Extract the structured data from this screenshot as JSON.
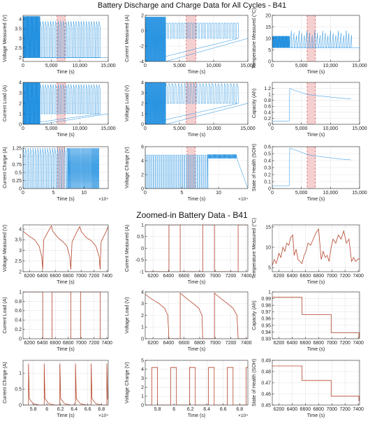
{
  "figure": {
    "title_top": "Battery Discharge and Charge Data for All Cycles - B41",
    "title_zoom": "Zoomed-in Battery Data - B41",
    "colors": {
      "overview": "#1f8fe0",
      "zoom": "#b6452c",
      "highlight": "#f3c4c4",
      "marker": "#d45a5a",
      "axis": "#262626",
      "grid": "#e6e6e6"
    }
  },
  "chart_data": [
    {
      "id": "vm_all",
      "type": "line",
      "ylabel": "Voltage Measured (V)",
      "xlabel": "Time (s)",
      "xlim": [
        0,
        15000
      ],
      "ylim": [
        1.8,
        4.2
      ],
      "xticks": [
        0,
        5000,
        10000,
        15000
      ],
      "xtick_labels": [
        "0",
        "5,000",
        "10,000",
        "15,000"
      ],
      "yticks": [
        2,
        2.5,
        3,
        3.5,
        4
      ],
      "ytick_labels": [
        "2",
        "2.5",
        "3",
        "3.5",
        "4"
      ],
      "highlight": [
        6000,
        7400
      ],
      "pattern": "spikes",
      "dense_end": 3000,
      "cycle_period": 450,
      "spike_end": 13500,
      "base": 2.0,
      "level": 3.9,
      "dense_low": 2.0,
      "dense_high": 4.15
    },
    {
      "id": "cm_all",
      "type": "line",
      "ylabel": "Current Measured (A)",
      "xlabel": "Time (s)",
      "xlim": [
        0,
        15000
      ],
      "ylim": [
        -4,
        2
      ],
      "xticks": [
        0,
        5000,
        10000,
        15000
      ],
      "xtick_labels": [
        "0",
        "5,000",
        "10,000",
        "15,000"
      ],
      "yticks": [
        -4,
        -2,
        0,
        2
      ],
      "ytick_labels": [
        "-4",
        "-2",
        "0",
        "2"
      ],
      "highlight": [
        6000,
        7400
      ],
      "pattern": "square",
      "dense_end": 3000,
      "cycle_period": 450,
      "spike_end": 13500,
      "base": -1.0,
      "level": 1.0,
      "dense_low": -4.0,
      "dense_high": 1.8
    },
    {
      "id": "tm_all",
      "type": "line",
      "ylabel": "Temperature Measured (°C)",
      "xlabel": "Time (s)",
      "xlim": [
        0,
        15000
      ],
      "ylim": [
        0,
        20
      ],
      "xticks": [
        0,
        5000,
        10000,
        15000
      ],
      "xtick_labels": [
        "0",
        "5,000",
        "10,000",
        "15,000"
      ],
      "yticks": [
        0,
        5,
        10,
        15,
        20
      ],
      "ytick_labels": [
        "0",
        "5",
        "10",
        "15",
        "20"
      ],
      "highlight": [
        6000,
        7400
      ],
      "pattern": "temp",
      "dense_end": 3000,
      "cycle_period": 450,
      "spike_end": 13500,
      "base": 6.0,
      "level": 14.0,
      "dense_low": 6.0,
      "dense_high": 11.0
    },
    {
      "id": "cl_all",
      "type": "line",
      "ylabel": "Current Load (A)",
      "xlabel": "Time (s)",
      "xlim": [
        0,
        15000
      ],
      "ylim": [
        0,
        4
      ],
      "xticks": [
        0,
        5000,
        10000,
        15000
      ],
      "xtick_labels": [
        "0",
        "5,000",
        "10,000",
        "15,000"
      ],
      "yticks": [
        0,
        1,
        2,
        3,
        4
      ],
      "ytick_labels": [
        "0",
        "1",
        "2",
        "3",
        "4"
      ],
      "highlight": [
        6000,
        7400
      ],
      "pattern": "spikes",
      "dense_end": 3000,
      "cycle_period": 450,
      "spike_end": 13500,
      "base": 1.0,
      "level": 3.8,
      "dense_low": 0.0,
      "dense_high": 4.0
    },
    {
      "id": "vl_all",
      "type": "line",
      "ylabel": "Voltage Load (V)",
      "xlabel": "Time (s)",
      "xlim": [
        0,
        15000
      ],
      "ylim": [
        0,
        4
      ],
      "xticks": [
        0,
        5000,
        10000,
        15000
      ],
      "xtick_labels": [
        "0",
        "5,000",
        "10,000",
        "15,000"
      ],
      "yticks": [
        0,
        1,
        2,
        3,
        4
      ],
      "ytick_labels": [
        "0",
        "1",
        "2",
        "3",
        "4"
      ],
      "highlight": [
        6000,
        7400
      ],
      "pattern": "spikes",
      "dense_end": 3000,
      "cycle_period": 450,
      "spike_end": 13500,
      "base": 2.0,
      "level": 3.9,
      "dense_low": 0.0,
      "dense_high": 4.0
    },
    {
      "id": "cap_all",
      "type": "line",
      "ylabel": "Capacity (Ah)",
      "xlabel": "Time (s)",
      "xlim": [
        0,
        15000
      ],
      "ylim": [
        0,
        1.4
      ],
      "xticks": [
        0,
        5000,
        10000,
        15000
      ],
      "xtick_labels": [
        "0",
        "5,000",
        "10,000",
        "15,000"
      ],
      "yticks": [
        0,
        0.2,
        0.4,
        0.6,
        0.8,
        1,
        1.2
      ],
      "ytick_labels": [
        "0",
        "0.2",
        "0.4",
        "0.6",
        "0.8",
        "1",
        "1.2"
      ],
      "highlight": [
        6000,
        7400
      ],
      "pattern": "points",
      "x": [
        0,
        2900,
        3000,
        4000,
        5000,
        6000,
        7000,
        8000,
        9000,
        10000,
        11000,
        12000,
        13500
      ],
      "y": [
        0.1,
        0.1,
        1.2,
        1.12,
        1.06,
        1.0,
        0.97,
        0.95,
        0.93,
        0.91,
        0.89,
        0.87,
        0.85
      ]
    },
    {
      "id": "cc_all",
      "type": "line",
      "ylabel": "Current Charge (A)",
      "xlabel": "Time (s)",
      "x_multiplier": "×10⁴",
      "xlim": [
        0,
        140000
      ],
      "ylim": [
        0,
        1.3
      ],
      "xticks": [
        0,
        50000,
        100000
      ],
      "xtick_labels": [
        "0",
        "5",
        "10"
      ],
      "yticks": [
        0,
        0.25,
        0.5,
        0.75,
        1,
        1.25
      ],
      "ytick_labels": [
        "0",
        "0.25",
        "0.5",
        "0.75",
        "1",
        "1.25"
      ],
      "highlight": [
        57000,
        68000
      ],
      "pattern": "spikes",
      "dense_start": 73000,
      "dense_end": 125000,
      "cycle_period": 4000,
      "spike_end": 73000,
      "base": 0.0,
      "level": 1.25,
      "dense_low": 0.0,
      "dense_high": 1.25
    },
    {
      "id": "vc_all",
      "type": "line",
      "ylabel": "Voltage Charge (V)",
      "xlabel": "Time (s)",
      "x_multiplier": "×10⁴",
      "xlim": [
        0,
        140000
      ],
      "ylim": [
        0,
        6
      ],
      "xticks": [
        0,
        50000,
        100000
      ],
      "xtick_labels": [
        "0",
        "5",
        "10"
      ],
      "yticks": [
        0,
        2,
        4,
        6
      ],
      "ytick_labels": [
        "0",
        "2",
        "4",
        "6"
      ],
      "highlight": [
        57000,
        68000
      ],
      "pattern": "square",
      "dense_start": 85000,
      "dense_end": 125000,
      "cycle_period": 3000,
      "spike_end": 85000,
      "base": 0.0,
      "level": 4.8,
      "dense_low": 4.3,
      "dense_high": 4.9
    },
    {
      "id": "soh_all",
      "type": "line",
      "ylabel": "State of Health (SOH)",
      "xlabel": "Time (s)",
      "xlim": [
        0,
        15000
      ],
      "ylim": [
        0,
        0.6
      ],
      "xticks": [
        0,
        5000,
        10000,
        15000
      ],
      "xtick_labels": [
        "0",
        "5,000",
        "10,000",
        "15,000"
      ],
      "yticks": [
        0,
        0.1,
        0.2,
        0.3,
        0.4,
        0.5,
        0.6
      ],
      "ytick_labels": [
        "0",
        "0.1",
        "0.2",
        "0.3",
        "0.4",
        "0.5",
        "0.6"
      ],
      "highlight": [
        6000,
        7400
      ],
      "pattern": "points",
      "x": [
        0,
        2900,
        3000,
        4000,
        5000,
        6000,
        7000,
        8000,
        9000,
        10000,
        11000,
        12000,
        13500
      ],
      "y": [
        0.04,
        0.04,
        0.58,
        0.55,
        0.52,
        0.49,
        0.47,
        0.46,
        0.45,
        0.44,
        0.43,
        0.42,
        0.41
      ]
    },
    {
      "id": "vm_zoom",
      "type": "line",
      "ylabel": "Voltage Measured (V)",
      "xlabel": "Time (s)",
      "xlim": [
        6100,
        7420
      ],
      "ylim": [
        2,
        4.2
      ],
      "xticks": [
        6200,
        6400,
        6600,
        6800,
        7000,
        7200,
        7400
      ],
      "xtick_labels": [
        "6200",
        "6400",
        "6600",
        "6800",
        "7000",
        "7200",
        "7400"
      ],
      "yticks": [
        2,
        2.5,
        3,
        3.5,
        4
      ],
      "ytick_labels": [
        "2",
        "2.5",
        "3",
        "3.5",
        "4"
      ],
      "pattern": "points",
      "x": [
        6100,
        6180,
        6280,
        6350,
        6390,
        6405,
        6420,
        6500,
        6540,
        6560,
        6640,
        6720,
        6780,
        6825,
        6840,
        6860,
        6940,
        6980,
        7000,
        7080,
        7160,
        7230,
        7280,
        7295,
        7310,
        7390,
        7420
      ],
      "y": [
        3.9,
        3.7,
        3.5,
        3.2,
        2.7,
        2.1,
        3.5,
        3.95,
        4.15,
        3.9,
        3.6,
        3.4,
        3.2,
        2.7,
        2.1,
        3.4,
        3.9,
        4.12,
        3.9,
        3.6,
        3.45,
        3.2,
        2.7,
        2.1,
        3.4,
        3.9,
        4.12
      ]
    },
    {
      "id": "cm_zoom",
      "type": "line",
      "ylabel": "Current Measured (A)",
      "xlabel": "Time (s)",
      "xlim": [
        6100,
        7420
      ],
      "ylim": [
        -1,
        1
      ],
      "xticks": [
        6200,
        6400,
        6600,
        6800,
        7000,
        7200,
        7400
      ],
      "xtick_labels": [
        "6200",
        "6400",
        "6600",
        "6800",
        "7000",
        "7200",
        "7400"
      ],
      "yticks": [
        -1,
        -0.5,
        0,
        0.5,
        1
      ],
      "ytick_labels": [
        "-1",
        "-0.5",
        "0",
        "0.5",
        "1"
      ],
      "pattern": "points",
      "x": [
        6100,
        6405,
        6405,
        6550,
        6550,
        6840,
        6840,
        6990,
        6990,
        7295,
        7295,
        7420
      ],
      "y": [
        -1,
        -1,
        1,
        1,
        -1,
        -1,
        1,
        1,
        -1,
        -1,
        1,
        1
      ]
    },
    {
      "id": "tm_zoom",
      "type": "line",
      "ylabel": "Temperature Measured (°C)",
      "xlabel": "Time (s)",
      "xlim": [
        6100,
        7420
      ],
      "ylim": [
        4,
        15.5
      ],
      "xticks": [
        6200,
        6400,
        6600,
        6800,
        7000,
        7200,
        7400
      ],
      "xtick_labels": [
        "6200",
        "6400",
        "6600",
        "6800",
        "7000",
        "7200",
        "7400"
      ],
      "yticks": [
        5,
        10,
        15
      ],
      "ytick_labels": [
        "5",
        "10",
        "15"
      ],
      "pattern": "points",
      "x": [
        6100,
        6130,
        6160,
        6200,
        6230,
        6260,
        6290,
        6320,
        6350,
        6380,
        6410,
        6430,
        6460,
        6490,
        6520,
        6550,
        6580,
        6610,
        6640,
        6680,
        6720,
        6760,
        6800,
        6840,
        6870,
        6900,
        6930,
        6960,
        6990,
        7020,
        7060,
        7100,
        7140,
        7180,
        7220,
        7260,
        7300,
        7330,
        7360,
        7390,
        7420
      ],
      "y": [
        5.5,
        7,
        6,
        8.5,
        7.5,
        10,
        9,
        11,
        10.5,
        12.5,
        13,
        8,
        9.5,
        7,
        6.5,
        6,
        8,
        9,
        11,
        10.5,
        12,
        13.5,
        14.5,
        7,
        9,
        7.5,
        8,
        6.5,
        10,
        12,
        11,
        13,
        12,
        14,
        11,
        12,
        6.5,
        7.5,
        6.5,
        7,
        7.2
      ]
    },
    {
      "id": "cl_zoom",
      "type": "line",
      "ylabel": "Current Load (A)",
      "xlabel": "Time (s)",
      "xlim": [
        6100,
        7420
      ],
      "ylim": [
        0,
        1
      ],
      "xticks": [
        6200,
        6400,
        6600,
        6800,
        7000,
        7200,
        7400
      ],
      "xtick_labels": [
        "6200",
        "6400",
        "6600",
        "6800",
        "7000",
        "7200",
        "7400"
      ],
      "yticks": [
        0,
        0.2,
        0.4,
        0.6,
        0.8,
        1
      ],
      "ytick_labels": [
        "0",
        "0.2",
        "0.4",
        "0.6",
        "0.8",
        "1"
      ],
      "pattern": "points",
      "x": [
        6100,
        6405,
        6405,
        6550,
        6550,
        6840,
        6840,
        6990,
        6990,
        7295,
        7295,
        7420
      ],
      "y": [
        1,
        1,
        0,
        0,
        1,
        1,
        0,
        0,
        1,
        1,
        0,
        0
      ]
    },
    {
      "id": "vl_zoom",
      "type": "line",
      "ylabel": "Voltage Load (V)",
      "xlabel": "Time (s)",
      "xlim": [
        6100,
        7420
      ],
      "ylim": [
        0,
        4
      ],
      "xticks": [
        6200,
        6400,
        6600,
        6800,
        7000,
        7200,
        7400
      ],
      "xtick_labels": [
        "6200",
        "6400",
        "6600",
        "6800",
        "7000",
        "7200",
        "7400"
      ],
      "yticks": [
        0,
        1,
        2,
        3,
        4
      ],
      "ytick_labels": [
        "0",
        "1",
        "2",
        "3",
        "4"
      ],
      "pattern": "points",
      "x": [
        6100,
        6180,
        6280,
        6350,
        6390,
        6405,
        6405,
        6550,
        6550,
        6640,
        6720,
        6790,
        6830,
        6840,
        6840,
        6990,
        6990,
        7080,
        7160,
        7230,
        7280,
        7295,
        7295,
        7420
      ],
      "y": [
        3.8,
        3.4,
        3.0,
        2.6,
        2.0,
        0,
        0,
        0,
        3.9,
        3.4,
        3.0,
        2.6,
        2.0,
        0,
        0,
        0,
        3.9,
        3.4,
        3.0,
        2.6,
        2.0,
        0,
        0,
        0
      ]
    },
    {
      "id": "cap_zoom",
      "type": "line",
      "ylabel": "Capacity (Ah)",
      "xlabel": "Time (s)",
      "xlim": [
        6100,
        7420
      ],
      "ylim": [
        0.93,
        1
      ],
      "xticks": [
        6200,
        6400,
        6600,
        6800,
        7000,
        7200,
        7400
      ],
      "xtick_labels": [
        "6200",
        "6400",
        "6600",
        "6800",
        "7000",
        "7200",
        "7400"
      ],
      "yticks": [
        0.93,
        0.94,
        0.95,
        0.96,
        0.97,
        0.98,
        0.99,
        1
      ],
      "ytick_labels": [
        "0.93",
        "0.94",
        "0.95",
        "0.96",
        "0.97",
        "0.98",
        "0.99",
        "1"
      ],
      "pattern": "points",
      "x": [
        6100,
        6550,
        6550,
        6990,
        6990,
        7410,
        7410,
        7420
      ],
      "y": [
        0.992,
        0.992,
        0.966,
        0.966,
        0.939,
        0.939,
        0.932,
        0.932
      ]
    },
    {
      "id": "cc_zoom",
      "type": "line",
      "ylabel": "Current Charge (A)",
      "xlabel": "Time (s)",
      "x_multiplier": "×10⁴",
      "xlim": [
        56500,
        69000
      ],
      "ylim": [
        0,
        1.4
      ],
      "xticks": [
        58000,
        60000,
        62000,
        64000,
        66000,
        68000
      ],
      "xtick_labels": [
        "5.8",
        "6",
        "6.2",
        "6.4",
        "6.6",
        "6.8"
      ],
      "yticks": [
        0,
        0.5,
        1
      ],
      "ytick_labels": [
        "0",
        "0.5",
        "1"
      ],
      "pattern": "zoom_spikes",
      "spikes_at": [
        57300,
        59600,
        61900,
        64200,
        66500,
        68800
      ],
      "base": 0.0,
      "level": 1.3,
      "decay": 0.2
    },
    {
      "id": "vc_zoom",
      "type": "line",
      "ylabel": "Voltage Charge (V)",
      "xlabel": "Time (s)",
      "x_multiplier": "×10⁴",
      "xlim": [
        56500,
        69000
      ],
      "ylim": [
        0,
        5
      ],
      "xticks": [
        58000,
        60000,
        62000,
        64000,
        66000,
        68000
      ],
      "xtick_labels": [
        "5.8",
        "6",
        "6.2",
        "6.4",
        "6.6",
        "6.8"
      ],
      "yticks": [
        0,
        1,
        2,
        3,
        4,
        5
      ],
      "ytick_labels": [
        "0",
        "1",
        "2",
        "3",
        "4",
        "5"
      ],
      "pattern": "zoom_square",
      "spikes_at": [
        57300,
        59600,
        61900,
        64200,
        66500,
        68800
      ],
      "width": 700,
      "base": 0.0,
      "level": 4.2
    },
    {
      "id": "soh_zoom",
      "type": "line",
      "ylabel": "State of Health (SOH)",
      "xlabel": "Time (s)",
      "xlim": [
        6100,
        7420
      ],
      "ylim": [
        0.45,
        0.49
      ],
      "xticks": [
        6200,
        6400,
        6600,
        6800,
        7000,
        7200,
        7400
      ],
      "xtick_labels": [
        "6200",
        "6400",
        "6600",
        "6800",
        "7000",
        "7200",
        "7400"
      ],
      "yticks": [
        0.45,
        0.46,
        0.47,
        0.48,
        0.49
      ],
      "ytick_labels": [
        "0.45",
        "0.46",
        "0.47",
        "0.48",
        "0.49"
      ],
      "pattern": "points",
      "x": [
        6100,
        6550,
        6550,
        6990,
        6990,
        7410,
        7410,
        7420
      ],
      "y": [
        0.485,
        0.485,
        0.472,
        0.472,
        0.458,
        0.458,
        0.454,
        0.454
      ]
    }
  ]
}
